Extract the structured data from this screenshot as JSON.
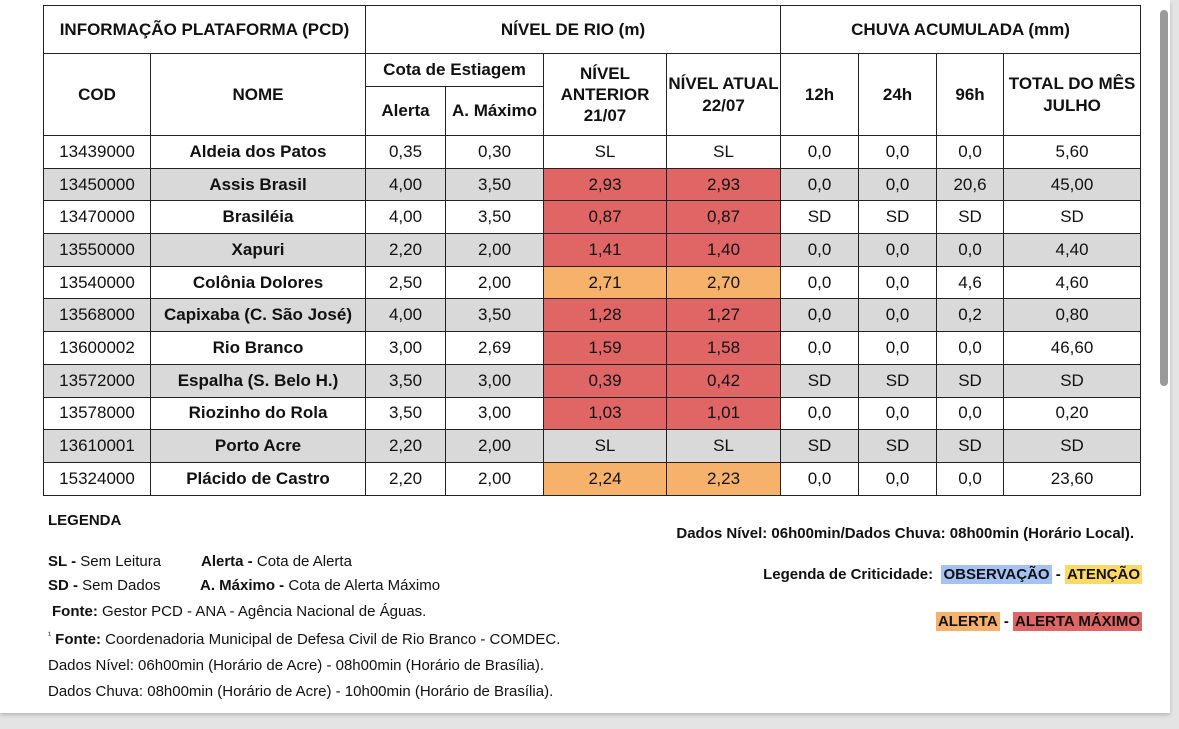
{
  "header": {
    "pcd": "INFORMAÇÃO PLATAFORMA (PCD)",
    "nivel": "NÍVEL DE RIO (m)",
    "chuva": "CHUVA  ACUMULADA (mm)",
    "cod": "COD",
    "nome": "NOME",
    "cota": "Cota de Estiagem",
    "alerta": "Alerta",
    "amax": "A. Máximo",
    "anterior": "NÍVEL ANTERIOR 21/07",
    "atual": "NÍVEL ATUAL 22/07",
    "h12": "12h",
    "h24": "24h",
    "h96": "96h",
    "total": "TOTAL DO MÊS JULHO"
  },
  "rows": [
    {
      "cod": "13439000",
      "nome": "Aldeia dos Patos",
      "alerta": "0,35",
      "amax": "0,30",
      "ant": "SL",
      "atu": "SL",
      "h12": "0,0",
      "h24": "0,0",
      "h96": "0,0",
      "total": "5,60",
      "level": ""
    },
    {
      "cod": "13450000",
      "nome": "Assis Brasil",
      "alerta": "4,00",
      "amax": "3,50",
      "ant": "2,93",
      "atu": "2,93",
      "h12": "0,0",
      "h24": "0,0",
      "h96": "20,6",
      "total": "45,00",
      "level": "red"
    },
    {
      "cod": "13470000",
      "nome": "Brasiléia",
      "alerta": "4,00",
      "amax": "3,50",
      "ant": "0,87",
      "atu": "0,87",
      "h12": "SD",
      "h24": "SD",
      "h96": "SD",
      "total": "SD",
      "level": "red"
    },
    {
      "cod": "13550000",
      "nome": "Xapuri",
      "alerta": "2,20",
      "amax": "2,00",
      "ant": "1,41",
      "atu": "1,40",
      "h12": "0,0",
      "h24": "0,0",
      "h96": "0,0",
      "total": "4,40",
      "level": "red"
    },
    {
      "cod": "13540000",
      "nome": "Colônia Dolores",
      "alerta": "2,50",
      "amax": "2,00",
      "ant": "2,71",
      "atu": "2,70",
      "h12": "0,0",
      "h24": "0,0",
      "h96": "4,6",
      "total": "4,60",
      "level": "org"
    },
    {
      "cod": "13568000",
      "nome": "Capixaba (C. São José)",
      "alerta": "4,00",
      "amax": "3,50",
      "ant": "1,28",
      "atu": "1,27",
      "h12": "0,0",
      "h24": "0,0",
      "h96": "0,2",
      "total": "0,80",
      "level": "red"
    },
    {
      "cod": "13600002",
      "nome": "Rio Branco",
      "alerta": "3,00",
      "amax": "2,69",
      "ant": "1,59",
      "atu": "1,58",
      "h12": "0,0",
      "h24": "0,0",
      "h96": "0,0",
      "total": "46,60",
      "level": "red"
    },
    {
      "cod": "13572000",
      "nome": "Espalha (S. Belo H.)",
      "alerta": "3,50",
      "amax": "3,00",
      "ant": "0,39",
      "atu": "0,42",
      "h12": "SD",
      "h24": "SD",
      "h96": "SD",
      "total": "SD",
      "level": "red"
    },
    {
      "cod": "13578000",
      "nome": "Riozinho do Rola",
      "alerta": "3,50",
      "amax": "3,00",
      "ant": "1,03",
      "atu": "1,01",
      "h12": "0,0",
      "h24": "0,0",
      "h96": "0,0",
      "total": "0,20",
      "level": "red"
    },
    {
      "cod": "13610001",
      "nome": "Porto Acre",
      "alerta": "2,20",
      "amax": "2,00",
      "ant": "SL",
      "atu": "SL",
      "h12": "SD",
      "h24": "SD",
      "h96": "SD",
      "total": "SD",
      "level": ""
    },
    {
      "cod": "15324000",
      "nome": "Plácido de Castro",
      "alerta": "2,20",
      "amax": "2,00",
      "ant": "2,24",
      "atu": "2,23",
      "h12": "0,0",
      "h24": "0,0",
      "h96": "0,0",
      "total": "23,60",
      "level": "org"
    }
  ],
  "legend": {
    "title": "LEGENDA",
    "sl_k": "SL -",
    "sl_v": " Sem Leitura",
    "al_k": "Alerta -",
    "al_v": " Cota de Alerta",
    "sd_k": "SD -",
    "sd_v": " Sem Dados",
    "am_k": "A. Máximo -",
    "am_v": " Cota de Alerta Máximo",
    "fonte_k": "Fonte:",
    "fonte_v": " Gestor PCD - ANA - Agência Nacional de Águas.",
    "fonte2_sup": "¹",
    "fonte2_k": "Fonte:",
    "fonte2_v": " Coordenadoria Municipal de Defesa Civil de Rio Branco - COMDEC.",
    "nivel_line": "Dados Nível: 06h00min (Horário de Acre) - 08h00min (Horário de Brasília).",
    "chuva_line": "Dados Chuva: 08h00min (Horário de Acre) - 10h00min (Horário de Brasília).",
    "horario": "Dados Nível: 06h00min/Dados Chuva: 08h00min (Horário Local).",
    "crit_label": "Legenda de Criticidade:",
    "observacao": "OBSERVAÇÃO",
    "atencao": "ATENÇÃO",
    "alerta": "ALERTA",
    "alerta_max": "ALERTA MÁXIMO",
    "sep": "-"
  },
  "colors": {
    "observacao": "#a4c2f4",
    "atencao": "#ffd966",
    "alerta": "#f6b26b",
    "alerta_max": "#e06666",
    "gray_row": "#d9d9d9"
  }
}
